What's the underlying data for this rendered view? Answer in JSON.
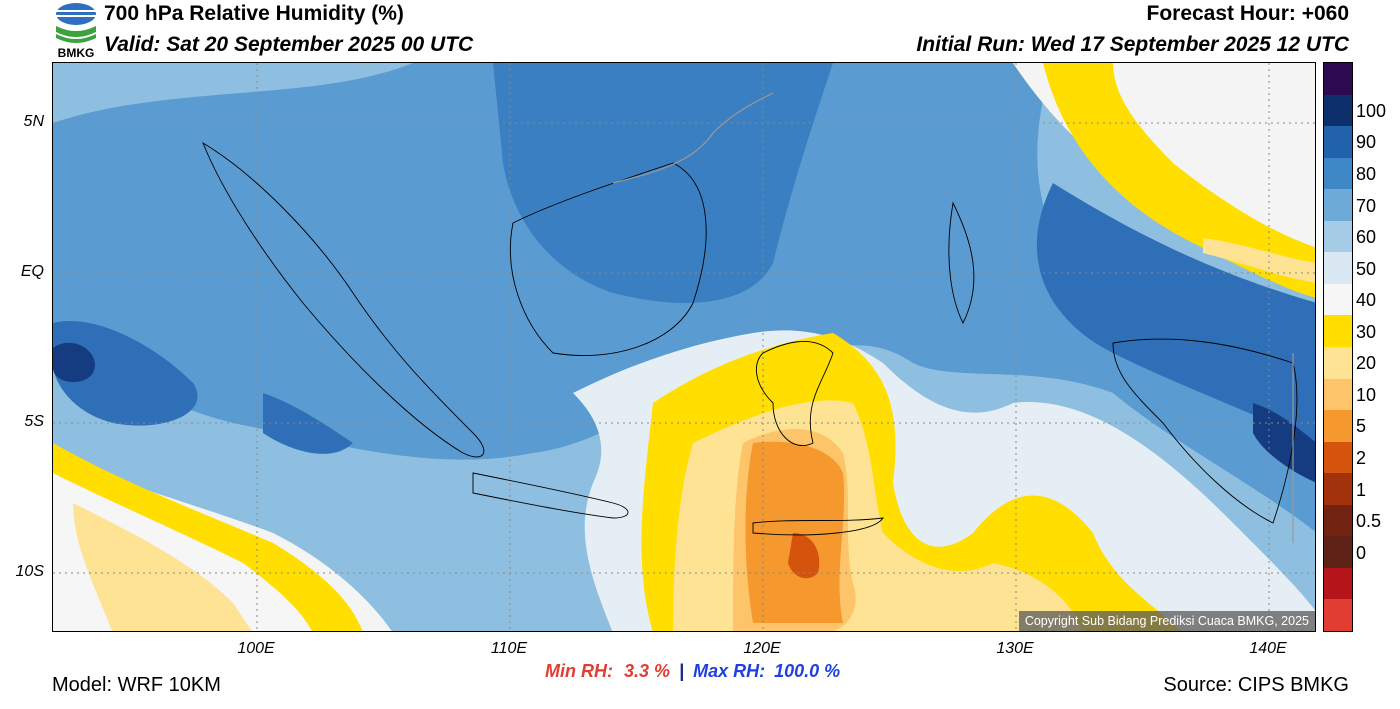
{
  "header": {
    "title": "700 hPa Relative Humidity (%)",
    "valid": "Valid: Sat 20 September 2025 00 UTC",
    "forecast_hour": "Forecast Hour: +060",
    "initial_run": "Initial Run: Wed 17 September 2025 12 UTC",
    "logo_text": "BMKG"
  },
  "map": {
    "lat_labels": [
      "5N",
      "EQ",
      "5S",
      "10S"
    ],
    "lon_labels": [
      "100E",
      "110E",
      "120E",
      "130E",
      "140E"
    ],
    "copyright": "Copyright Sub Bidang Prediksi Cuaca BMKG, 2025",
    "colors": {
      "background_blue": "#8fbfe0",
      "deep_blue": "#2e6fb7",
      "yellow": "#ffde00",
      "orange": "#f6a23c"
    }
  },
  "colorbar": {
    "labels": [
      "100",
      "90",
      "80",
      "70",
      "60",
      "50",
      "40",
      "30",
      "20",
      "10",
      "5",
      "2",
      "1",
      "0.5",
      "0"
    ],
    "colors_top_to_bottom": [
      "#2d0a52",
      "#0d2f6b",
      "#2261ac",
      "#3f88c8",
      "#6eaad8",
      "#a6cbe6",
      "#d9e8f3",
      "#f6f6f6",
      "#ffde00",
      "#fee394",
      "#fdc46a",
      "#f5982e",
      "#d4530d",
      "#a1320c",
      "#732311",
      "#5e2216",
      "#b5141b",
      "#e23d32"
    ]
  },
  "footer": {
    "min_rh_label": "Min RH:",
    "min_rh_value": "3.3 %",
    "separator": "|",
    "max_rh_label": "Max RH:",
    "max_rh_value": "100.0 %",
    "model": "Model: WRF 10KM",
    "source": "Source: CIPS BMKG"
  }
}
